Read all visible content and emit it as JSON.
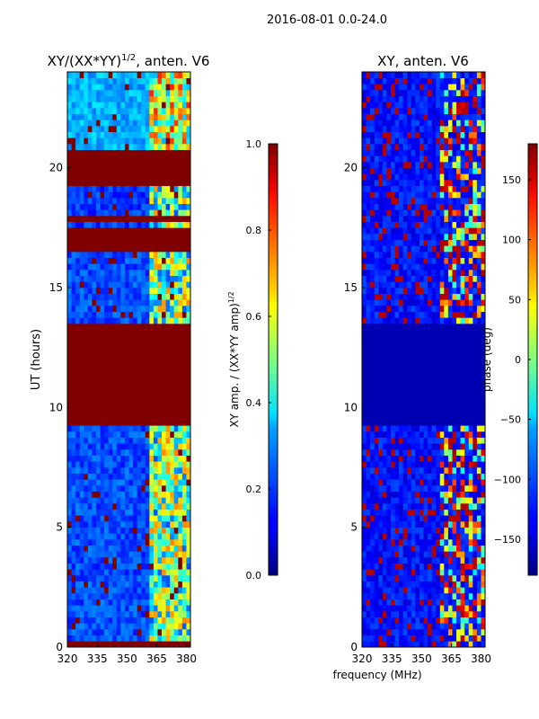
{
  "chart_data": {
    "suptitle": "2016-08-01 0.0-24.0",
    "shared_xlabel": "frequency (MHz)",
    "panels": [
      {
        "type": "heatmap",
        "title_main": "XY/(XX*YY)",
        "title_exp": "1/2",
        "title_tail": ", anten. V6",
        "ylabel": "UT (hours)",
        "xlim": [
          320,
          382
        ],
        "ylim": [
          0,
          24
        ],
        "xticks": [
          320,
          335,
          350,
          365,
          380
        ],
        "yticks": [
          0,
          5,
          10,
          15,
          20
        ],
        "colorbar": {
          "label_main": "XY amp. / (XX*YY amp)",
          "label_exp": "1/2",
          "range": [
            0.0,
            1.0
          ],
          "ticks": [
            "0.0",
            "0.2",
            "0.4",
            "0.6",
            "0.8",
            "1.0"
          ],
          "tick_values": [
            0.0,
            0.2,
            0.4,
            0.6,
            0.8,
            1.0
          ]
        },
        "saturated_bands_hours": [
          [
            0.0,
            0.2
          ],
          [
            9.3,
            13.4
          ],
          [
            16.4,
            17.5
          ],
          [
            17.7,
            17.9
          ],
          [
            19.3,
            20.7
          ]
        ],
        "description_regions": [
          {
            "from": 0.2,
            "to": 9.3,
            "level": 0.2
          },
          {
            "from": 13.4,
            "to": 16.4,
            "level": 0.2
          },
          {
            "from": 20.7,
            "to": 24.0,
            "level": 0.3
          }
        ]
      },
      {
        "type": "heatmap",
        "title": "XY, anten. V6",
        "xlim": [
          320,
          382
        ],
        "ylim": [
          0,
          24
        ],
        "xticks": [
          320,
          335,
          350,
          365,
          380
        ],
        "yticks": [
          0,
          5,
          10,
          15,
          20
        ],
        "colorbar": {
          "label": "phase (deg)",
          "range": [
            -180,
            180
          ],
          "ticks": [
            "−150",
            "−100",
            "−50",
            "0",
            "50",
            "100",
            "150"
          ],
          "tick_values": [
            -150,
            -100,
            -50,
            0,
            50,
            100,
            150
          ]
        },
        "uniform_band_hours": [
          [
            9.3,
            13.4
          ]
        ]
      }
    ]
  }
}
